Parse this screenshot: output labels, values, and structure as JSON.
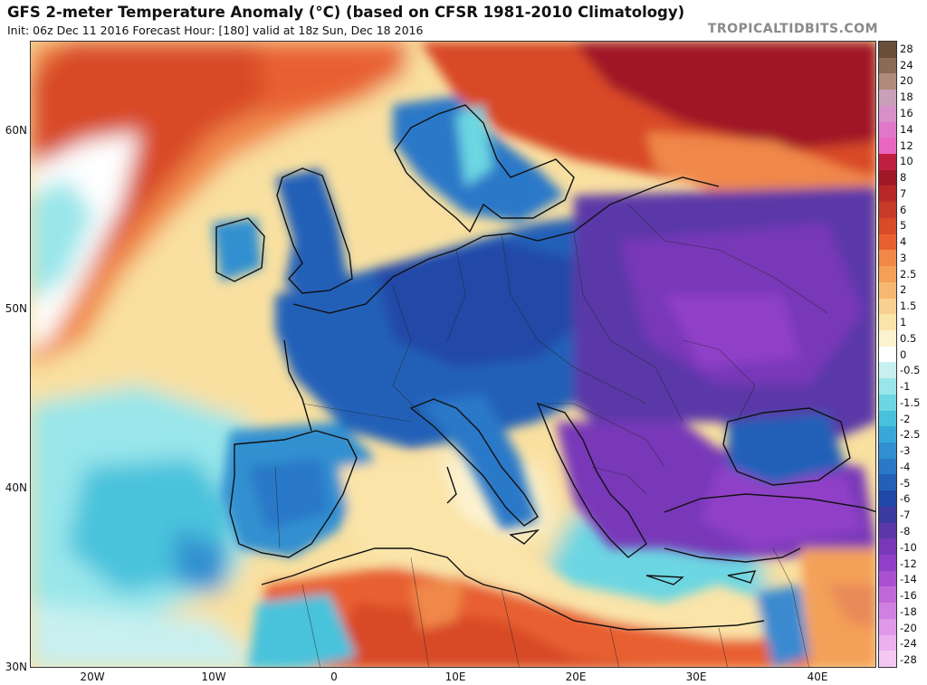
{
  "header": {
    "title": "GFS 2-meter Temperature Anomaly (°C) (based on CFSR 1981-2010 Climatology)",
    "subtitle": "Init: 06z Dec 11 2016   Forecast Hour: [180]   valid at 18z Sun, Dec 18 2016",
    "brand": "TROPICALTIDBITS.COM"
  },
  "map": {
    "region": "Europe / Mediterranean",
    "lat_labels": [
      "60N",
      "50N",
      "40N",
      "30N"
    ],
    "lon_labels": [
      "20W",
      "10W",
      "0",
      "10E",
      "20E",
      "30E",
      "40E"
    ]
  },
  "colorbar": {
    "labels": [
      "28",
      "24",
      "20",
      "18",
      "16",
      "14",
      "12",
      "10",
      "8",
      "7",
      "6",
      "5",
      "4",
      "3",
      "2.5",
      "2",
      "1.5",
      "1",
      "0.5",
      "0",
      "-0.5",
      "-1",
      "-1.5",
      "-2",
      "-2.5",
      "-3",
      "-4",
      "-5",
      "-6",
      "-7",
      "-8",
      "-10",
      "-12",
      "-14",
      "-16",
      "-18",
      "-20",
      "-24",
      "-28"
    ],
    "colors": [
      "#6b4e3a",
      "#8b6a58",
      "#b08a7a",
      "#c8a0b8",
      "#d890c8",
      "#e078c8",
      "#e868c0",
      "#c02040",
      "#a01828",
      "#b82828",
      "#c83a28",
      "#d84a28",
      "#e86030",
      "#f08848",
      "#f4a058",
      "#f6b870",
      "#f8d090",
      "#fae4a8",
      "#fcf2d0",
      "#ffffff",
      "#c8f0f0",
      "#98e6ea",
      "#6cd6e2",
      "#48c2dc",
      "#38a8d8",
      "#3090d0",
      "#2a78c8",
      "#2460b8",
      "#2048a8",
      "#3a3aa0",
      "#5a38a8",
      "#7838b8",
      "#9040c8",
      "#a850d0",
      "#c068d8",
      "#d080e0",
      "#e098e8",
      "#ecb0ee",
      "#f4c8f2"
    ]
  }
}
